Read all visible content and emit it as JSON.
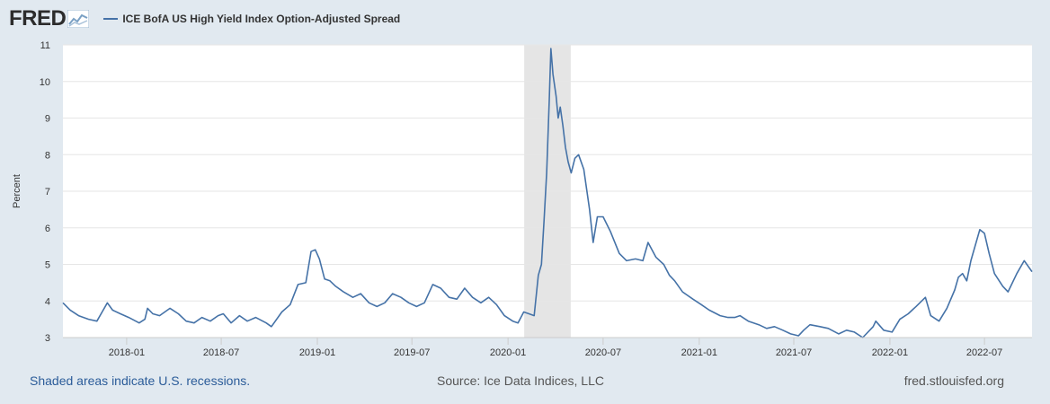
{
  "header": {
    "logo_text": "FRED",
    "series_label": "ICE BofA US High Yield Index Option-Adjusted Spread"
  },
  "footer": {
    "recession_note": "Shaded areas indicate U.S. recessions.",
    "source": "Source: Ice Data Indices, LLC",
    "site": "fred.stlouisfed.org"
  },
  "colors": {
    "line": "#4572a7",
    "recession": "#e5e5e5",
    "grid": "#e6e6e6",
    "page_bg": "#e1e9f0"
  },
  "chart_data": {
    "type": "line",
    "ylabel": "Percent",
    "ylim": [
      3,
      11
    ],
    "yticks": [
      "3",
      "4",
      "5",
      "6",
      "7",
      "8",
      "9",
      "10",
      "11"
    ],
    "xlim": [
      "2017-09-01",
      "2022-09-30"
    ],
    "xticks": [
      "2018-01",
      "2018-07",
      "2019-01",
      "2019-07",
      "2020-01",
      "2020-07",
      "2021-01",
      "2021-07",
      "2022-01",
      "2022-07"
    ],
    "grid": true,
    "legend": "top-left",
    "recessions": [
      {
        "start": "2020-02-01",
        "end": "2020-04-30"
      }
    ],
    "series": [
      {
        "name": "ICE BofA US High Yield Index Option-Adjusted Spread",
        "points": [
          [
            "2017-09-01",
            3.95
          ],
          [
            "2017-09-15",
            3.75
          ],
          [
            "2017-10-01",
            3.6
          ],
          [
            "2017-10-20",
            3.5
          ],
          [
            "2017-11-05",
            3.45
          ],
          [
            "2017-11-15",
            3.7
          ],
          [
            "2017-11-25",
            3.95
          ],
          [
            "2017-12-05",
            3.75
          ],
          [
            "2017-12-20",
            3.65
          ],
          [
            "2018-01-05",
            3.55
          ],
          [
            "2018-01-25",
            3.4
          ],
          [
            "2018-02-05",
            3.5
          ],
          [
            "2018-02-10",
            3.8
          ],
          [
            "2018-02-20",
            3.65
          ],
          [
            "2018-03-05",
            3.6
          ],
          [
            "2018-03-25",
            3.8
          ],
          [
            "2018-04-10",
            3.65
          ],
          [
            "2018-04-25",
            3.45
          ],
          [
            "2018-05-10",
            3.4
          ],
          [
            "2018-05-25",
            3.55
          ],
          [
            "2018-06-10",
            3.45
          ],
          [
            "2018-06-25",
            3.6
          ],
          [
            "2018-07-05",
            3.65
          ],
          [
            "2018-07-20",
            3.4
          ],
          [
            "2018-08-05",
            3.6
          ],
          [
            "2018-08-20",
            3.45
          ],
          [
            "2018-09-05",
            3.55
          ],
          [
            "2018-09-25",
            3.4
          ],
          [
            "2018-10-05",
            3.3
          ],
          [
            "2018-10-25",
            3.7
          ],
          [
            "2018-11-10",
            3.9
          ],
          [
            "2018-11-25",
            4.45
          ],
          [
            "2018-12-10",
            4.5
          ],
          [
            "2018-12-20",
            5.35
          ],
          [
            "2018-12-28",
            5.4
          ],
          [
            "2019-01-05",
            5.15
          ],
          [
            "2019-01-15",
            4.6
          ],
          [
            "2019-01-25",
            4.55
          ],
          [
            "2019-02-05",
            4.4
          ],
          [
            "2019-02-20",
            4.25
          ],
          [
            "2019-03-10",
            4.1
          ],
          [
            "2019-03-25",
            4.2
          ],
          [
            "2019-04-10",
            3.95
          ],
          [
            "2019-04-25",
            3.85
          ],
          [
            "2019-05-10",
            3.95
          ],
          [
            "2019-05-25",
            4.2
          ],
          [
            "2019-06-10",
            4.1
          ],
          [
            "2019-06-25",
            3.95
          ],
          [
            "2019-07-10",
            3.85
          ],
          [
            "2019-07-25",
            3.95
          ],
          [
            "2019-08-10",
            4.45
          ],
          [
            "2019-08-25",
            4.35
          ],
          [
            "2019-09-10",
            4.1
          ],
          [
            "2019-09-25",
            4.05
          ],
          [
            "2019-10-10",
            4.35
          ],
          [
            "2019-10-25",
            4.1
          ],
          [
            "2019-11-10",
            3.95
          ],
          [
            "2019-11-25",
            4.1
          ],
          [
            "2019-12-10",
            3.9
          ],
          [
            "2019-12-25",
            3.6
          ],
          [
            "2020-01-10",
            3.45
          ],
          [
            "2020-01-20",
            3.4
          ],
          [
            "2020-01-31",
            3.7
          ],
          [
            "2020-02-10",
            3.65
          ],
          [
            "2020-02-20",
            3.6
          ],
          [
            "2020-02-28",
            4.7
          ],
          [
            "2020-03-05",
            5.0
          ],
          [
            "2020-03-10",
            6.2
          ],
          [
            "2020-03-15",
            7.5
          ],
          [
            "2020-03-20",
            9.5
          ],
          [
            "2020-03-23",
            10.9
          ],
          [
            "2020-03-27",
            10.2
          ],
          [
            "2020-04-02",
            9.6
          ],
          [
            "2020-04-06",
            9.0
          ],
          [
            "2020-04-10",
            9.3
          ],
          [
            "2020-04-15",
            8.8
          ],
          [
            "2020-04-20",
            8.2
          ],
          [
            "2020-04-25",
            7.8
          ],
          [
            "2020-05-01",
            7.5
          ],
          [
            "2020-05-08",
            7.9
          ],
          [
            "2020-05-15",
            8.0
          ],
          [
            "2020-05-25",
            7.6
          ],
          [
            "2020-06-05",
            6.5
          ],
          [
            "2020-06-12",
            5.6
          ],
          [
            "2020-06-20",
            6.3
          ],
          [
            "2020-07-01",
            6.3
          ],
          [
            "2020-07-15",
            5.9
          ],
          [
            "2020-08-01",
            5.3
          ],
          [
            "2020-08-15",
            5.1
          ],
          [
            "2020-09-01",
            5.15
          ],
          [
            "2020-09-15",
            5.1
          ],
          [
            "2020-09-25",
            5.6
          ],
          [
            "2020-10-10",
            5.2
          ],
          [
            "2020-10-25",
            5.0
          ],
          [
            "2020-11-05",
            4.7
          ],
          [
            "2020-11-15",
            4.55
          ],
          [
            "2020-11-30",
            4.25
          ],
          [
            "2020-12-20",
            4.05
          ],
          [
            "2021-01-05",
            3.9
          ],
          [
            "2021-01-20",
            3.75
          ],
          [
            "2021-02-10",
            3.6
          ],
          [
            "2021-02-25",
            3.55
          ],
          [
            "2021-03-10",
            3.55
          ],
          [
            "2021-03-20",
            3.6
          ],
          [
            "2021-04-05",
            3.45
          ],
          [
            "2021-04-25",
            3.35
          ],
          [
            "2021-05-10",
            3.25
          ],
          [
            "2021-05-25",
            3.3
          ],
          [
            "2021-06-10",
            3.2
          ],
          [
            "2021-06-25",
            3.1
          ],
          [
            "2021-07-10",
            3.05
          ],
          [
            "2021-07-20",
            3.2
          ],
          [
            "2021-08-01",
            3.35
          ],
          [
            "2021-08-20",
            3.3
          ],
          [
            "2021-09-05",
            3.25
          ],
          [
            "2021-09-25",
            3.1
          ],
          [
            "2021-10-10",
            3.2
          ],
          [
            "2021-10-25",
            3.15
          ],
          [
            "2021-11-10",
            3.0
          ],
          [
            "2021-11-30",
            3.3
          ],
          [
            "2021-12-05",
            3.45
          ],
          [
            "2021-12-20",
            3.2
          ],
          [
            "2022-01-05",
            3.15
          ],
          [
            "2022-01-20",
            3.5
          ],
          [
            "2022-02-05",
            3.65
          ],
          [
            "2022-02-20",
            3.85
          ],
          [
            "2022-03-10",
            4.1
          ],
          [
            "2022-03-20",
            3.6
          ],
          [
            "2022-04-05",
            3.45
          ],
          [
            "2022-04-20",
            3.8
          ],
          [
            "2022-05-05",
            4.3
          ],
          [
            "2022-05-12",
            4.65
          ],
          [
            "2022-05-20",
            4.75
          ],
          [
            "2022-05-28",
            4.55
          ],
          [
            "2022-06-05",
            5.1
          ],
          [
            "2022-06-15",
            5.6
          ],
          [
            "2022-06-22",
            5.95
          ],
          [
            "2022-07-01",
            5.85
          ],
          [
            "2022-07-10",
            5.3
          ],
          [
            "2022-07-20",
            4.75
          ],
          [
            "2022-08-05",
            4.4
          ],
          [
            "2022-08-15",
            4.25
          ],
          [
            "2022-09-01",
            4.75
          ],
          [
            "2022-09-15",
            5.1
          ],
          [
            "2022-09-30",
            4.8
          ]
        ]
      }
    ]
  }
}
